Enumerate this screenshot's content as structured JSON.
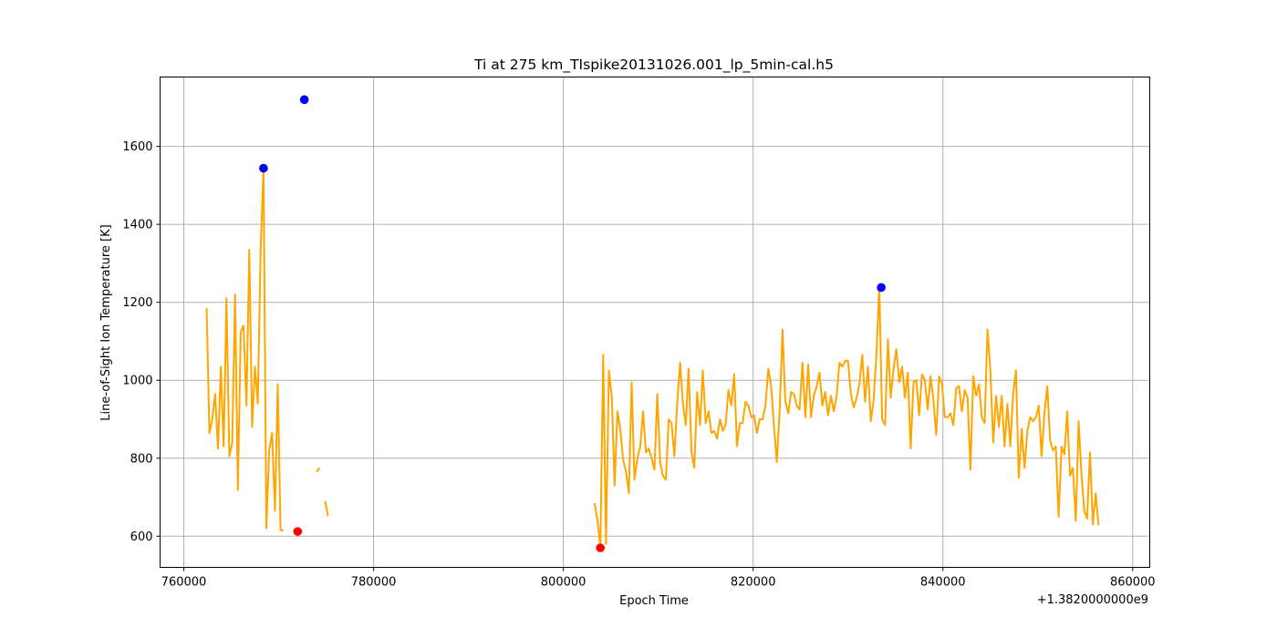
{
  "chart_data": {
    "type": "line",
    "title": "Ti at 275 km_TIspike20131026.001_lp_5min-cal.h5",
    "xlabel": "Epoch Time",
    "ylabel": "Line-of-Sight Ion Temperature [K]",
    "x_offset_label": "+1.3820000000e9",
    "x_ticks": [
      760000,
      780000,
      800000,
      820000,
      840000,
      860000
    ],
    "x_tick_labels": [
      "760000",
      "780000",
      "800000",
      "820000",
      "840000",
      "860000"
    ],
    "y_ticks": [
      600,
      800,
      1000,
      1200,
      1400,
      1600
    ],
    "y_tick_labels": [
      "600",
      "800",
      "1000",
      "1200",
      "1400",
      "1600"
    ],
    "xlim": [
      757500,
      861800
    ],
    "ylim": [
      520,
      1778
    ],
    "grid": true,
    "series": [
      {
        "color": "#ffa500",
        "segments": [
          [
            [
              762400,
              1185
            ],
            [
              762700,
              865
            ],
            [
              763000,
              900
            ],
            [
              763300,
              965
            ],
            [
              763600,
              825
            ],
            [
              763900,
              1035
            ],
            [
              764200,
              830
            ],
            [
              764500,
              1210
            ],
            [
              764800,
              805
            ],
            [
              765100,
              840
            ],
            [
              765400,
              1220
            ],
            [
              765700,
              718
            ],
            [
              766000,
              1125
            ],
            [
              766300,
              1140
            ],
            [
              766600,
              935
            ],
            [
              766900,
              1335
            ],
            [
              767200,
              880
            ],
            [
              767500,
              1035
            ],
            [
              767800,
              940
            ],
            [
              768100,
              1340
            ],
            [
              768400,
              1545
            ],
            [
              768700,
              620
            ],
            [
              769000,
              820
            ],
            [
              769300,
              865
            ],
            [
              769600,
              665
            ],
            [
              769900,
              990
            ],
            [
              770200,
              615
            ],
            [
              770500,
              615
            ]
          ],
          [
            [
              774000,
              765
            ],
            [
              774300,
              775
            ]
          ],
          [
            [
              774900,
              690
            ],
            [
              775200,
              652
            ]
          ],
          [
            [
              803300,
              685
            ],
            [
              803600,
              640
            ],
            [
              803900,
              570
            ],
            [
              804200,
              1065
            ],
            [
              804500,
              580
            ],
            [
              804800,
              1025
            ],
            [
              805100,
              960
            ],
            [
              805400,
              730
            ],
            [
              805700,
              920
            ],
            [
              806000,
              875
            ],
            [
              806300,
              795
            ],
            [
              806600,
              765
            ],
            [
              806900,
              710
            ],
            [
              807200,
              995
            ],
            [
              807500,
              745
            ],
            [
              807800,
              800
            ],
            [
              808100,
              830
            ],
            [
              808400,
              920
            ],
            [
              808700,
              815
            ],
            [
              809000,
              825
            ],
            [
              809300,
              800
            ],
            [
              809600,
              770
            ],
            [
              809900,
              965
            ],
            [
              810200,
              790
            ],
            [
              810500,
              755
            ],
            [
              810800,
              745
            ],
            [
              811100,
              900
            ],
            [
              811400,
              890
            ],
            [
              811700,
              805
            ],
            [
              812000,
              940
            ],
            [
              812300,
              1045
            ],
            [
              812600,
              940
            ],
            [
              812900,
              885
            ],
            [
              813200,
              1030
            ],
            [
              813500,
              815
            ],
            [
              813800,
              775
            ],
            [
              814100,
              970
            ],
            [
              814400,
              885
            ],
            [
              814700,
              1025
            ],
            [
              815000,
              890
            ],
            [
              815300,
              920
            ],
            [
              815600,
              865
            ],
            [
              815900,
              870
            ],
            [
              816200,
              850
            ],
            [
              816500,
              900
            ],
            [
              816800,
              870
            ],
            [
              817100,
              885
            ],
            [
              817400,
              975
            ],
            [
              817700,
              935
            ],
            [
              818000,
              1015
            ],
            [
              818300,
              830
            ],
            [
              818600,
              890
            ],
            [
              818900,
              890
            ],
            [
              819200,
              945
            ],
            [
              819500,
              935
            ],
            [
              819800,
              905
            ],
            [
              820100,
              910
            ],
            [
              820400,
              865
            ],
            [
              820700,
              900
            ],
            [
              821000,
              900
            ],
            [
              821300,
              935
            ],
            [
              821600,
              1030
            ],
            [
              821900,
              985
            ],
            [
              822200,
              880
            ],
            [
              822500,
              790
            ],
            [
              822800,
              925
            ],
            [
              823100,
              1130
            ],
            [
              823400,
              945
            ],
            [
              823700,
              915
            ],
            [
              824000,
              970
            ],
            [
              824300,
              965
            ],
            [
              824600,
              935
            ],
            [
              824900,
              925
            ],
            [
              825200,
              1045
            ],
            [
              825500,
              905
            ],
            [
              825800,
              1040
            ],
            [
              826100,
              905
            ],
            [
              826400,
              960
            ],
            [
              826700,
              985
            ],
            [
              827000,
              1020
            ],
            [
              827300,
              935
            ],
            [
              827600,
              970
            ],
            [
              827900,
              910
            ],
            [
              828200,
              960
            ],
            [
              828500,
              920
            ],
            [
              828800,
              960
            ],
            [
              829100,
              1045
            ],
            [
              829400,
              1035
            ],
            [
              829700,
              1050
            ],
            [
              830000,
              1050
            ],
            [
              830300,
              965
            ],
            [
              830600,
              930
            ],
            [
              830900,
              955
            ],
            [
              831200,
              990
            ],
            [
              831500,
              1065
            ],
            [
              831800,
              945
            ],
            [
              832100,
              1035
            ],
            [
              832400,
              895
            ],
            [
              832700,
              950
            ],
            [
              833000,
              1070
            ],
            [
              833300,
              1240
            ],
            [
              833600,
              900
            ],
            [
              833900,
              885
            ],
            [
              834200,
              1105
            ],
            [
              834500,
              955
            ],
            [
              834800,
              1030
            ],
            [
              835100,
              1080
            ],
            [
              835400,
              995
            ],
            [
              835700,
              1035
            ],
            [
              836000,
              955
            ],
            [
              836300,
              1020
            ],
            [
              836600,
              825
            ],
            [
              836900,
              995
            ],
            [
              837200,
              1000
            ],
            [
              837500,
              910
            ],
            [
              837800,
              1015
            ],
            [
              838100,
              1000
            ],
            [
              838400,
              925
            ],
            [
              838700,
              1010
            ],
            [
              839000,
              950
            ],
            [
              839300,
              860
            ],
            [
              839600,
              1010
            ],
            [
              839900,
              990
            ],
            [
              840200,
              905
            ],
            [
              840500,
              905
            ],
            [
              840800,
              915
            ],
            [
              841100,
              885
            ],
            [
              841400,
              980
            ],
            [
              841700,
              985
            ],
            [
              842000,
              920
            ],
            [
              842300,
              975
            ],
            [
              842600,
              955
            ],
            [
              842900,
              770
            ],
            [
              843200,
              1010
            ],
            [
              843500,
              960
            ],
            [
              843800,
              990
            ],
            [
              844100,
              905
            ],
            [
              844400,
              890
            ],
            [
              844700,
              1130
            ],
            [
              845000,
              1030
            ],
            [
              845300,
              840
            ],
            [
              845600,
              960
            ],
            [
              845900,
              880
            ],
            [
              846200,
              960
            ],
            [
              846500,
              830
            ],
            [
              846800,
              940
            ],
            [
              847100,
              830
            ],
            [
              847400,
              965
            ],
            [
              847700,
              1025
            ],
            [
              848000,
              750
            ],
            [
              848300,
              875
            ],
            [
              848600,
              775
            ],
            [
              848900,
              870
            ],
            [
              849200,
              905
            ],
            [
              849500,
              895
            ],
            [
              849800,
              905
            ],
            [
              850100,
              935
            ],
            [
              850400,
              805
            ],
            [
              850700,
              915
            ],
            [
              851000,
              985
            ],
            [
              851300,
              845
            ],
            [
              851600,
              820
            ],
            [
              851900,
              830
            ],
            [
              852200,
              650
            ],
            [
              852500,
              830
            ],
            [
              852800,
              810
            ],
            [
              853100,
              920
            ],
            [
              853400,
              755
            ],
            [
              853700,
              775
            ],
            [
              854000,
              640
            ],
            [
              854300,
              895
            ],
            [
              854600,
              760
            ],
            [
              854900,
              665
            ],
            [
              855200,
              645
            ],
            [
              855500,
              815
            ],
            [
              855800,
              630
            ],
            [
              856100,
              710
            ],
            [
              856400,
              628
            ]
          ]
        ]
      }
    ],
    "markers": [
      {
        "color": "#0000ff",
        "points": [
          [
            768400,
            1544
          ],
          [
            772700,
            1720
          ],
          [
            833500,
            1238
          ]
        ]
      },
      {
        "color": "#ff0000",
        "points": [
          [
            772000,
            612
          ],
          [
            803900,
            570
          ]
        ]
      }
    ]
  }
}
